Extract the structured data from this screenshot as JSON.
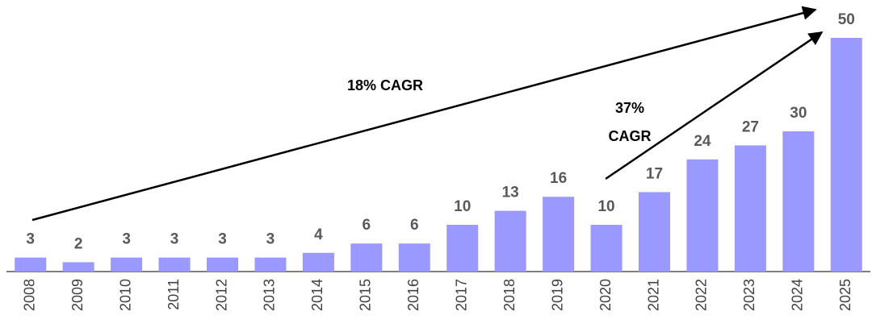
{
  "chart_data": {
    "type": "bar",
    "categories": [
      "2008",
      "2009",
      "2010",
      "2011",
      "2012",
      "2013",
      "2014",
      "2015",
      "2016",
      "2017",
      "2018",
      "2019",
      "2020",
      "2021",
      "2022",
      "2023",
      "2024",
      "2025"
    ],
    "values": [
      3,
      2,
      3,
      3,
      3,
      3,
      4,
      6,
      6,
      10,
      13,
      16,
      10,
      17,
      24,
      27,
      30,
      50
    ],
    "color": "#9999ff",
    "annotations": [
      [
        "18% CAGR"
      ],
      [
        "37%",
        "CAGR"
      ]
    ]
  }
}
